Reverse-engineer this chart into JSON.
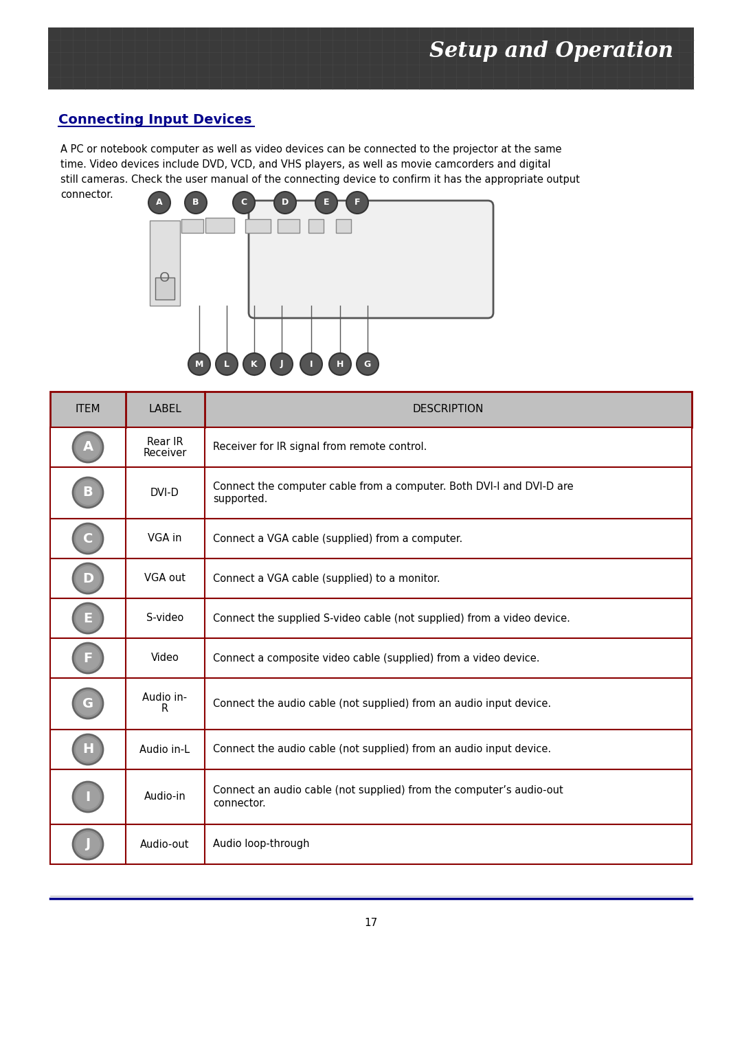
{
  "title": "Setup and Operation",
  "section_title": "Connecting Input Devices",
  "intro_text": "A PC or notebook computer as well as video devices can be connected to the projector at the same\ntime. Video devices include DVD, VCD, and VHS players, as well as movie camcorders and digital\nstill cameras. Check the user manual of the connecting device to confirm it has the appropriate output\nconnector.",
  "table_header": [
    "ITEM",
    "LABEL",
    "DESCRIPTION"
  ],
  "table_rows": [
    [
      "A",
      "Rear IR\nReceiver",
      "Receiver for IR signal from remote control."
    ],
    [
      "B",
      "DVI-D",
      "Connect the computer cable from a computer. Both DVI-I and DVI-D are\nsupported."
    ],
    [
      "C",
      "VGA in",
      "Connect a VGA cable (supplied) from a computer."
    ],
    [
      "D",
      "VGA out",
      "Connect a VGA cable (supplied) to a monitor."
    ],
    [
      "E",
      "S-video",
      "Connect the supplied S-video cable (not supplied) from a video device."
    ],
    [
      "F",
      "Video",
      "Connect a composite video cable (supplied) from a video device."
    ],
    [
      "G",
      "Audio in-\nR",
      "Connect the audio cable (not supplied) from an audio input device."
    ],
    [
      "H",
      "Audio in-L",
      "Connect the audio cable (not supplied) from an audio input device."
    ],
    [
      "I",
      "Audio-in",
      "Connect an audio cable (not supplied) from the computer’s audio-out\nconnector."
    ],
    [
      "J",
      "Audio-out",
      "Audio loop-through"
    ]
  ],
  "page_number": "17",
  "header_bg": "#3a3a3a",
  "header_text_color": "#ffffff",
  "table_border_color": "#8b0000",
  "table_header_bg": "#c0c0c0",
  "table_header_text": "#000000",
  "icon_bg": "#808080",
  "icon_text": "#ffffff",
  "section_title_color": "#00008b",
  "body_bg": "#ffffff",
  "footer_line_color": "#00008b",
  "page_bg": "#ffffff"
}
